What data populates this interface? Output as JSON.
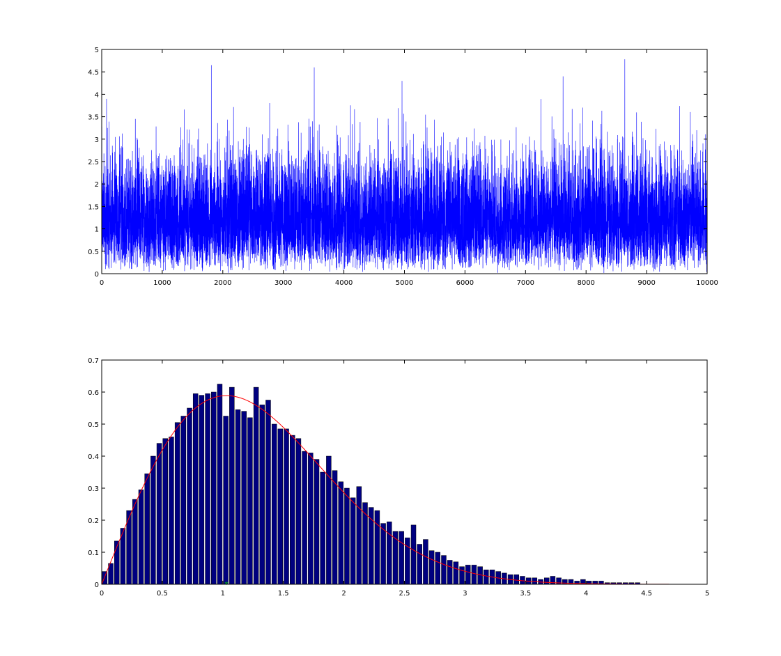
{
  "chart_data": [
    {
      "type": "line",
      "title": "",
      "xlabel": "",
      "ylabel": "",
      "xlim": [
        0,
        10000
      ],
      "ylim": [
        0,
        5
      ],
      "xticks": [
        0,
        1000,
        2000,
        3000,
        4000,
        5000,
        6000,
        7000,
        8000,
        9000,
        10000
      ],
      "yticks": [
        0,
        0.5,
        1,
        1.5,
        2,
        2.5,
        3,
        3.5,
        4,
        4.5,
        5
      ],
      "xtick_labels": [
        "0",
        "1000",
        "2000",
        "3000",
        "4000",
        "5000",
        "6000",
        "7000",
        "8000",
        "9000",
        "10000"
      ],
      "ytick_labels": [
        "0",
        "0.5",
        "1",
        "1.5",
        "2",
        "2.5",
        "3",
        "3.5",
        "4",
        "4.5",
        "5"
      ],
      "grid": false,
      "color": "#0000ff",
      "n_samples": 10000,
      "notable_peaks": [
        {
          "x": 80,
          "y": 3.9
        },
        {
          "x": 1810,
          "y": 4.65
        },
        {
          "x": 3510,
          "y": 4.6
        },
        {
          "x": 4960,
          "y": 4.3
        },
        {
          "x": 7620,
          "y": 4.4
        },
        {
          "x": 8640,
          "y": 4.78
        }
      ],
      "typical_band": [
        0.1,
        2.7
      ]
    },
    {
      "type": "bar",
      "title": "",
      "xlabel": "",
      "ylabel": "",
      "xlim": [
        0,
        5
      ],
      "ylim": [
        0,
        0.7
      ],
      "xticks": [
        0,
        0.5,
        1,
        1.5,
        2,
        2.5,
        3,
        3.5,
        4,
        4.5,
        5
      ],
      "yticks": [
        0,
        0.1,
        0.2,
        0.3,
        0.4,
        0.5,
        0.6,
        0.7
      ],
      "xtick_labels": [
        "0",
        "0.5",
        "1",
        "1.5",
        "2",
        "2.5",
        "3",
        "3.5",
        "4",
        "4.5",
        "5"
      ],
      "ytick_labels": [
        "0",
        "0.1",
        "0.2",
        "0.3",
        "0.4",
        "0.5",
        "0.6",
        "0.7"
      ],
      "grid": false,
      "bar_color": "#000080",
      "curve_color": "#ff0000",
      "marker_color": "#00cc00",
      "bin_width": 0.05,
      "bin_start": 0,
      "values": [
        0.04,
        0.065,
        0.135,
        0.175,
        0.23,
        0.265,
        0.295,
        0.345,
        0.4,
        0.44,
        0.455,
        0.46,
        0.505,
        0.525,
        0.55,
        0.595,
        0.59,
        0.595,
        0.6,
        0.625,
        0.525,
        0.615,
        0.545,
        0.54,
        0.52,
        0.615,
        0.56,
        0.575,
        0.5,
        0.485,
        0.485,
        0.465,
        0.455,
        0.415,
        0.41,
        0.39,
        0.35,
        0.4,
        0.355,
        0.32,
        0.3,
        0.27,
        0.305,
        0.255,
        0.24,
        0.23,
        0.19,
        0.195,
        0.165,
        0.165,
        0.145,
        0.185,
        0.125,
        0.14,
        0.105,
        0.1,
        0.09,
        0.075,
        0.07,
        0.055,
        0.06,
        0.06,
        0.055,
        0.045,
        0.045,
        0.04,
        0.035,
        0.03,
        0.03,
        0.025,
        0.02,
        0.02,
        0.015,
        0.02,
        0.025,
        0.02,
        0.015,
        0.015,
        0.01,
        0.015,
        0.01,
        0.01,
        0.01,
        0.005,
        0.005,
        0.005,
        0.005,
        0.005,
        0.005,
        0,
        0,
        0,
        0,
        0,
        0,
        0,
        0,
        0,
        0,
        0
      ],
      "fit_curve": {
        "type": "rayleigh",
        "sigma": 1.03
      },
      "marker": {
        "x": 1.03,
        "y": 0
      }
    }
  ]
}
